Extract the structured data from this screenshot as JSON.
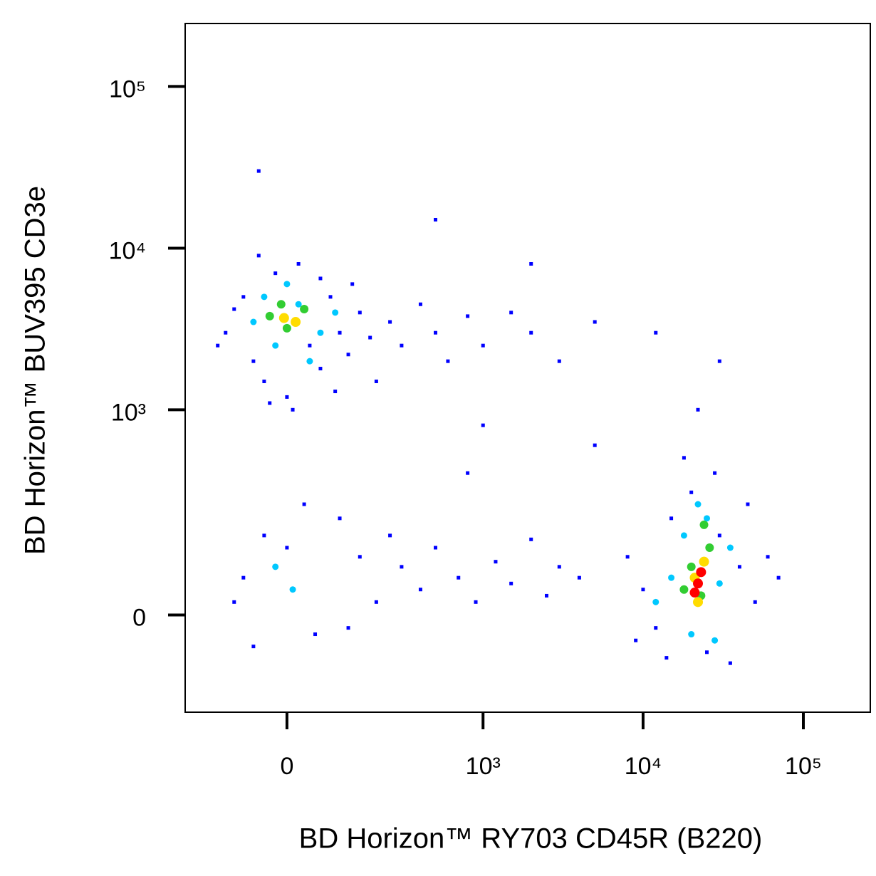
{
  "chart_data": {
    "type": "scatter",
    "x_label": "BD Horizon™ RY703 CD45R (B220)",
    "y_label": "BD Horizon™ BUV395 CD3e",
    "xlim": [
      -245,
      261600
    ],
    "ylim": [
      -202,
      245000
    ],
    "xticks": [
      0,
      {
        "value": 1000,
        "label": "10³"
      },
      {
        "value": 10000,
        "label": "10⁴"
      },
      {
        "value": 100000,
        "label": "10⁵"
      }
    ],
    "yticks": [
      0,
      {
        "value": 1000,
        "label": "10³"
      },
      {
        "value": 10000,
        "label": "10⁴"
      },
      {
        "value": 100000,
        "label": "10⁵"
      }
    ],
    "series": [
      {
        "color": "#0000ff",
        "x": [
          -120,
          -80,
          -60,
          -40,
          -20,
          0,
          20,
          40,
          60,
          80,
          100,
          120,
          150,
          180,
          200,
          -100,
          -50,
          10,
          60,
          130,
          250,
          300,
          400,
          500,
          600,
          800,
          1000,
          1500,
          2000,
          3000,
          5000,
          -140,
          -30,
          90,
          300,
          400,
          500,
          700,
          900,
          1200,
          1500,
          2000,
          2500,
          3000,
          4000,
          -80,
          -40,
          50,
          100,
          150,
          200,
          -100,
          -60,
          0,
          30,
          120,
          250,
          8000,
          10000,
          12000,
          15000,
          20000,
          25000,
          30000,
          40000,
          50000,
          60000,
          9000,
          35000,
          18000,
          22000,
          45000,
          70000,
          14000,
          28000,
          -50,
          2000,
          500,
          12000,
          30000,
          800,
          5000,
          1000
        ],
        "y": [
          3000,
          5000,
          2000,
          1500,
          7000,
          1200,
          8000,
          2500,
          1800,
          5000,
          3000,
          2200,
          4000,
          2800,
          1500,
          4200,
          9000,
          1000,
          6500,
          6000,
          3500,
          2500,
          4500,
          3000,
          2000,
          3800,
          2500,
          4000,
          3000,
          2000,
          3500,
          2500,
          1100,
          1300,
          80,
          40,
          120,
          60,
          20,
          90,
          50,
          140,
          30,
          80,
          60,
          60,
          150,
          -30,
          200,
          100,
          20,
          20,
          -50,
          120,
          250,
          -20,
          150,
          100,
          40,
          -20,
          200,
          300,
          -60,
          150,
          80,
          20,
          100,
          -40,
          -80,
          500,
          1000,
          250,
          60,
          -70,
          400,
          30000,
          8000,
          15000,
          3000,
          2000,
          400,
          600,
          800
        ]
      },
      {
        "color": "#00c8ff",
        "x": [
          -60,
          -20,
          20,
          60,
          -40,
          40,
          90,
          0,
          15000,
          18000,
          20000,
          25000,
          30000,
          35000,
          12000,
          28000,
          22000,
          -20,
          10
        ],
        "y": [
          3500,
          2500,
          4500,
          3000,
          5000,
          2000,
          4000,
          6000,
          60,
          150,
          -30,
          200,
          50,
          120,
          20,
          -40,
          250,
          80,
          40
        ]
      },
      {
        "color": "#32cd32",
        "x": [
          -30,
          0,
          30,
          -10,
          20000,
          23000,
          26000,
          18000,
          24000
        ],
        "y": [
          3800,
          3200,
          4200,
          4500,
          80,
          30,
          120,
          40,
          180
        ]
      },
      {
        "color": "#ffdc00",
        "x": [
          -5,
          15,
          21000,
          24000,
          22000
        ],
        "y": [
          3700,
          3500,
          60,
          90,
          20
        ]
      },
      {
        "color": "#ff0000",
        "x": [
          22000,
          23000,
          21000
        ],
        "y": [
          50,
          70,
          35
        ]
      }
    ]
  }
}
